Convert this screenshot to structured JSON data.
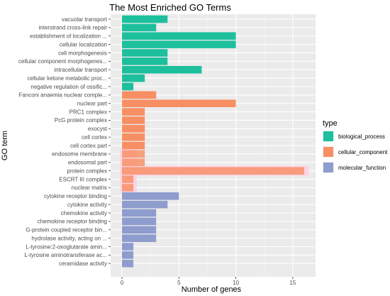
{
  "chart_data": {
    "type": "bar",
    "orientation": "horizontal",
    "title": "The Most Enriched GO Terms",
    "xlabel": "Number of genes",
    "ylabel": "GO term",
    "xlim": [
      -1,
      17
    ],
    "xticks": [
      0,
      5,
      10,
      15
    ],
    "grid": true,
    "legend": {
      "title": "type",
      "placement": "right"
    },
    "colors": {
      "biological_process": "#1DBF9D",
      "cellular_component": "#F88E63",
      "molecular_function": "#8E9CCE",
      "highlight": "#FFCFE4",
      "panel": "#EBEBEB"
    },
    "series": [
      {
        "name": "biological_process",
        "color": "#1DBF9D"
      },
      {
        "name": "cellular_component",
        "color": "#F88E63"
      },
      {
        "name": "molecular_function",
        "color": "#8E9CCE"
      }
    ],
    "categories": [
      "vacuolar transport",
      "interstrand cross-link repair",
      "establishment of localization ...",
      "cellular localization",
      "cell morphogenesis",
      "cellular component morphogenes...",
      "intracellular transport",
      "cellular ketone metabolic proc...",
      "negative regulation of ossific...",
      "Fanconi anaemia nuclear comple...",
      "nuclear part",
      "PRC1 complex",
      "PcG protein complex",
      "exocyst",
      "cell cortex",
      "cell cortex part",
      "endosome membrane",
      "endosomal part",
      "protein complex",
      "ESCRT III complex",
      "nuclear matrix",
      "cytokine receptor binding",
      "cytokine activity",
      "chemokine activity",
      "chemokine receptor binding",
      "G-protein coupled receptor bin...",
      "hydrolase activity, acting on ...",
      "L-tyrosine:2-oxoglutarate amin...",
      "L-tyrosine aminotransferase ac...",
      "ceramidase activity"
    ],
    "values": [
      4,
      3,
      10,
      10,
      4,
      4,
      7,
      2,
      1,
      3,
      10,
      2,
      2,
      2,
      2,
      2,
      2,
      2,
      16,
      1,
      1,
      5,
      4,
      3,
      3,
      3,
      3,
      1,
      1,
      1
    ],
    "types": [
      "biological_process",
      "biological_process",
      "biological_process",
      "biological_process",
      "biological_process",
      "biological_process",
      "biological_process",
      "biological_process",
      "biological_process",
      "cellular_component",
      "cellular_component",
      "cellular_component",
      "cellular_component",
      "cellular_component",
      "cellular_component",
      "cellular_component",
      "cellular_component",
      "cellular_component",
      "cellular_component",
      "cellular_component",
      "cellular_component",
      "molecular_function",
      "molecular_function",
      "molecular_function",
      "molecular_function",
      "molecular_function",
      "molecular_function",
      "molecular_function",
      "molecular_function",
      "molecular_function"
    ],
    "highlighted_categories": [
      "endosome membrane",
      "endosomal part",
      "protein complex",
      "ESCRT III complex",
      "nuclear matrix"
    ]
  }
}
